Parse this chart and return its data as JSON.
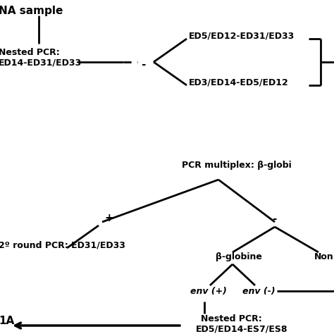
{
  "background_color": "#ffffff",
  "line_color": "#000000",
  "line_width": 2.0,
  "text_color": "#000000",
  "labels": {
    "dna_sample": "NA sample",
    "nested_pcr1": "Nested PCR:",
    "nested_pcr1b": "ED14-ED31/ED33",
    "minus1": "-",
    "branch_top": "ED5/ED12-ED31/ED33",
    "branch_bot": "ED3/ED14-ED5/ED12",
    "pcr_multiplex": "PCR multiplex: β-globi",
    "plus": "+",
    "minus2": "-",
    "second_round1": "2º round PCR: ED31/ED33",
    "beta_globine": "β-globine",
    "non": "Non",
    "env_plus": "env (+)",
    "env_minus": "env (-)",
    "nested_pcr2a": "Nested PCR:",
    "nested_pcr2b": "ED5/ED14-ES7/ES8",
    "arrow_label": "1A"
  }
}
